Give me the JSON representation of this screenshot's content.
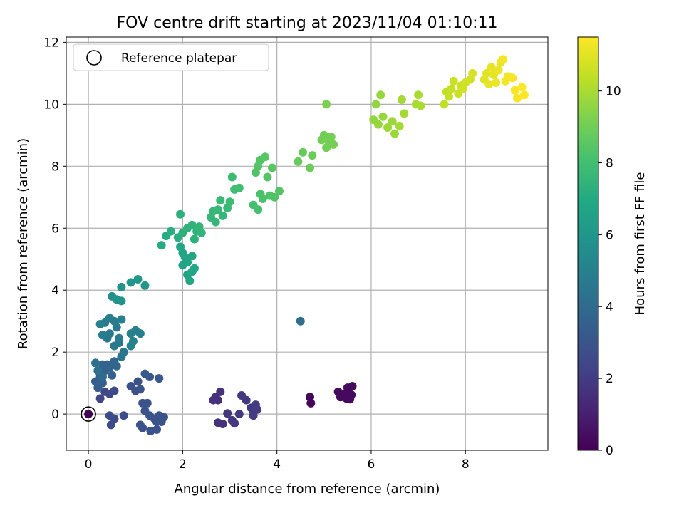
{
  "chart_data": {
    "type": "scatter",
    "title": "FOV centre drift starting at 2023/11/04 01:10:11",
    "xlabel": "Angular distance from reference (arcmin)",
    "ylabel": "Rotation from reference (arcmin)",
    "xlim": [
      -0.47,
      9.75
    ],
    "ylim": [
      -1.17,
      12.17
    ],
    "xticks": [
      0,
      2,
      4,
      6,
      8
    ],
    "yticks": [
      0,
      2,
      4,
      6,
      8,
      10,
      12
    ],
    "grid": true,
    "legend": {
      "placement": "top-left",
      "entries": [
        {
          "label": "Reference platepar",
          "marker": "open-circle"
        }
      ]
    },
    "reference_point": {
      "x": 0,
      "y": 0,
      "hours": 0
    },
    "colorbar": {
      "label": "Hours from first FF file",
      "min": 0,
      "max": 11.5,
      "ticks": [
        0,
        2,
        4,
        6,
        8,
        10
      ],
      "colormap": "viridis"
    },
    "points": [
      [
        4.7,
        0.55,
        0.2
      ],
      [
        4.72,
        0.35,
        0.2
      ],
      [
        5.3,
        0.72,
        0.3
      ],
      [
        5.35,
        0.55,
        0.3
      ],
      [
        5.4,
        0.65,
        0.3
      ],
      [
        5.45,
        0.6,
        0.3
      ],
      [
        5.5,
        0.85,
        0.4
      ],
      [
        5.52,
        0.7,
        0.3
      ],
      [
        5.55,
        0.48,
        0.3
      ],
      [
        5.58,
        0.62,
        0.3
      ],
      [
        5.6,
        0.9,
        0.4
      ],
      [
        5.48,
        0.5,
        0.3
      ],
      [
        2.65,
        0.45,
        1.6
      ],
      [
        2.7,
        0.55,
        1.6
      ],
      [
        2.75,
        0.45,
        1.6
      ],
      [
        2.8,
        0.72,
        1.7
      ],
      [
        2.75,
        -0.28,
        1.7
      ],
      [
        2.85,
        -0.32,
        1.7
      ],
      [
        2.95,
        0.02,
        1.8
      ],
      [
        3.05,
        -0.2,
        1.8
      ],
      [
        3.1,
        -0.3,
        1.8
      ],
      [
        3.2,
        0.0,
        1.9
      ],
      [
        3.25,
        0.6,
        1.9
      ],
      [
        3.35,
        0.45,
        1.9
      ],
      [
        3.45,
        0.2,
        1.9
      ],
      [
        3.5,
        0.1,
        1.9
      ],
      [
        3.5,
        -0.05,
        2.0
      ],
      [
        3.55,
        0.3,
        2.0
      ],
      [
        3.58,
        0.15,
        2.0
      ],
      [
        0.25,
        0.5,
        2.4
      ],
      [
        0.35,
        0.72,
        2.5
      ],
      [
        0.45,
        0.65,
        2.5
      ],
      [
        0.55,
        0.75,
        2.5
      ],
      [
        0.45,
        -0.05,
        2.6
      ],
      [
        0.55,
        -0.15,
        2.6
      ],
      [
        0.48,
        -0.35,
        2.6
      ],
      [
        0.75,
        -0.05,
        2.7
      ],
      [
        0.9,
        0.9,
        2.8
      ],
      [
        1.0,
        0.75,
        2.8
      ],
      [
        1.05,
        1.05,
        2.8
      ],
      [
        1.1,
        0.8,
        2.9
      ],
      [
        1.15,
        0.35,
        2.9
      ],
      [
        1.2,
        0.1,
        2.9
      ],
      [
        1.25,
        0.35,
        3.0
      ],
      [
        1.1,
        -0.35,
        3.0
      ],
      [
        1.15,
        -0.45,
        3.0
      ],
      [
        1.3,
        -0.05,
        3.0
      ],
      [
        1.32,
        -0.55,
        3.0
      ],
      [
        1.4,
        -0.15,
        3.0
      ],
      [
        1.45,
        -0.25,
        3.0
      ],
      [
        1.5,
        -0.05,
        3.0
      ],
      [
        1.55,
        -0.25,
        3.0
      ],
      [
        1.6,
        -0.1,
        3.0
      ],
      [
        1.45,
        -0.5,
        3.0
      ],
      [
        1.5,
        1.15,
        3.1
      ],
      [
        1.2,
        1.3,
        3.1
      ],
      [
        1.3,
        1.2,
        3.2
      ],
      [
        0.15,
        1.05,
        3.4
      ],
      [
        0.2,
        0.85,
        3.4
      ],
      [
        0.25,
        1.2,
        3.4
      ],
      [
        0.3,
        1.0,
        3.5
      ],
      [
        0.35,
        1.4,
        3.6
      ],
      [
        0.4,
        1.6,
        3.7
      ],
      [
        0.45,
        1.5,
        3.7
      ],
      [
        0.55,
        1.7,
        3.8
      ],
      [
        0.3,
        1.6,
        3.7
      ],
      [
        0.25,
        1.3,
        3.6
      ],
      [
        0.5,
        1.25,
        3.6
      ],
      [
        0.6,
        1.55,
        3.8
      ],
      [
        4.5,
        3.0,
        4.2
      ],
      [
        0.7,
        1.85,
        4.4
      ],
      [
        0.75,
        2.0,
        4.5
      ],
      [
        0.65,
        2.3,
        4.6
      ],
      [
        0.55,
        2.2,
        4.6
      ],
      [
        0.45,
        2.6,
        4.6
      ],
      [
        0.4,
        2.45,
        4.6
      ],
      [
        0.6,
        2.8,
        4.7
      ],
      [
        0.35,
        2.95,
        4.8
      ],
      [
        0.45,
        3.1,
        4.8
      ],
      [
        0.55,
        3.0,
        4.8
      ],
      [
        0.3,
        2.55,
        4.8
      ],
      [
        0.65,
        2.45,
        4.8
      ],
      [
        1.0,
        2.7,
        4.9
      ],
      [
        1.1,
        2.6,
        4.9
      ],
      [
        0.9,
        2.6,
        5.0
      ],
      [
        0.25,
        2.9,
        5.0
      ],
      [
        0.7,
        3.05,
        5.0
      ],
      [
        0.2,
        1.4,
        4.3
      ],
      [
        0.15,
        1.65,
        4.3
      ],
      [
        0.3,
        1.2,
        4.0
      ],
      [
        0.9,
        2.2,
        5.1
      ],
      [
        0.95,
        2.35,
        5.1
      ],
      [
        0.5,
        3.8,
        5.7
      ],
      [
        0.6,
        3.7,
        5.8
      ],
      [
        0.7,
        3.65,
        5.8
      ],
      [
        0.7,
        4.1,
        5.9
      ],
      [
        0.9,
        4.25,
        6.0
      ],
      [
        1.05,
        4.35,
        6.1
      ],
      [
        1.2,
        4.15,
        6.1
      ],
      [
        2.0,
        4.8,
        6.6
      ],
      [
        2.1,
        4.5,
        6.7
      ],
      [
        2.15,
        4.3,
        6.7
      ],
      [
        2.2,
        4.6,
        6.8
      ],
      [
        2.25,
        4.7,
        6.8
      ],
      [
        2.0,
        5.2,
        6.7
      ],
      [
        2.05,
        5.05,
        6.7
      ],
      [
        2.1,
        4.9,
        6.7
      ],
      [
        2.2,
        5.1,
        6.8
      ],
      [
        1.95,
        5.4,
        6.8
      ],
      [
        1.55,
        5.45,
        7.0
      ],
      [
        1.65,
        5.75,
        7.1
      ],
      [
        1.75,
        5.9,
        7.2
      ],
      [
        1.9,
        5.7,
        7.2
      ],
      [
        1.95,
        6.45,
        7.3
      ],
      [
        2.0,
        5.85,
        7.3
      ],
      [
        2.1,
        6.0,
        7.4
      ],
      [
        2.2,
        6.1,
        7.4
      ],
      [
        2.3,
        5.9,
        7.4
      ],
      [
        2.35,
        6.05,
        7.5
      ],
      [
        2.25,
        5.65,
        7.3
      ],
      [
        2.4,
        5.85,
        7.5
      ],
      [
        2.6,
        6.35,
        7.6
      ],
      [
        2.65,
        6.55,
        7.6
      ],
      [
        2.7,
        6.2,
        7.6
      ],
      [
        2.75,
        6.6,
        7.7
      ],
      [
        2.8,
        6.9,
        7.7
      ],
      [
        2.85,
        6.4,
        7.6
      ],
      [
        2.95,
        6.65,
        7.7
      ],
      [
        3.0,
        6.85,
        7.8
      ],
      [
        3.05,
        7.65,
        7.8
      ],
      [
        3.1,
        7.25,
        7.9
      ],
      [
        3.2,
        7.3,
        7.9
      ],
      [
        3.5,
        6.75,
        8.1
      ],
      [
        3.6,
        6.6,
        8.1
      ],
      [
        3.65,
        7.1,
        8.2
      ],
      [
        3.7,
        6.95,
        8.2
      ],
      [
        3.85,
        7.05,
        8.3
      ],
      [
        3.95,
        7.0,
        8.3
      ],
      [
        4.05,
        7.2,
        8.4
      ],
      [
        3.55,
        7.8,
        8.3
      ],
      [
        3.6,
        8.0,
        8.4
      ],
      [
        3.65,
        8.2,
        8.4
      ],
      [
        3.75,
        8.3,
        8.5
      ],
      [
        3.8,
        7.65,
        8.4
      ],
      [
        3.9,
        7.95,
        8.5
      ],
      [
        4.45,
        8.15,
        8.8
      ],
      [
        4.55,
        8.45,
        8.8
      ],
      [
        4.7,
        7.95,
        8.9
      ],
      [
        4.75,
        8.35,
        8.9
      ],
      [
        4.95,
        8.85,
        9.0
      ],
      [
        5.0,
        9.0,
        9.0
      ],
      [
        5.05,
        8.6,
        9.0
      ],
      [
        5.1,
        8.8,
        9.1
      ],
      [
        5.15,
        8.95,
        9.1
      ],
      [
        5.2,
        8.7,
        9.1
      ],
      [
        5.05,
        10.0,
        9.2
      ],
      [
        6.05,
        9.5,
        9.6
      ],
      [
        6.1,
        10.0,
        9.6
      ],
      [
        6.15,
        9.35,
        9.7
      ],
      [
        6.2,
        10.3,
        9.7
      ],
      [
        6.25,
        9.6,
        9.7
      ],
      [
        6.35,
        9.25,
        9.8
      ],
      [
        6.45,
        9.45,
        9.8
      ],
      [
        6.5,
        9.05,
        9.8
      ],
      [
        6.6,
        9.3,
        9.9
      ],
      [
        6.65,
        10.15,
        9.9
      ],
      [
        6.7,
        9.7,
        9.9
      ],
      [
        6.95,
        10.0,
        10.0
      ],
      [
        7.0,
        10.3,
        10.0
      ],
      [
        7.05,
        9.95,
        10.0
      ],
      [
        7.55,
        10.0,
        10.4
      ],
      [
        7.6,
        10.4,
        10.4
      ],
      [
        7.65,
        10.25,
        10.5
      ],
      [
        7.7,
        10.5,
        10.5
      ],
      [
        7.75,
        10.75,
        10.6
      ],
      [
        7.85,
        10.35,
        10.6
      ],
      [
        7.9,
        10.6,
        10.6
      ],
      [
        7.95,
        10.5,
        10.7
      ],
      [
        8.0,
        10.7,
        10.7
      ],
      [
        8.1,
        10.8,
        10.7
      ],
      [
        8.15,
        11.0,
        10.8
      ],
      [
        8.4,
        10.8,
        11.0
      ],
      [
        8.45,
        11.0,
        11.0
      ],
      [
        8.5,
        10.65,
        11.1
      ],
      [
        8.55,
        11.2,
        11.1
      ],
      [
        8.6,
        10.95,
        11.1
      ],
      [
        8.65,
        10.7,
        11.2
      ],
      [
        8.7,
        11.1,
        11.2
      ],
      [
        8.75,
        11.35,
        11.2
      ],
      [
        8.8,
        11.45,
        11.3
      ],
      [
        8.85,
        10.75,
        11.3
      ],
      [
        8.9,
        10.9,
        11.3
      ],
      [
        9.0,
        10.85,
        11.4
      ],
      [
        9.05,
        10.45,
        11.4
      ],
      [
        9.1,
        10.2,
        11.4
      ],
      [
        9.2,
        10.55,
        11.5
      ],
      [
        9.25,
        10.3,
        11.5
      ]
    ]
  }
}
